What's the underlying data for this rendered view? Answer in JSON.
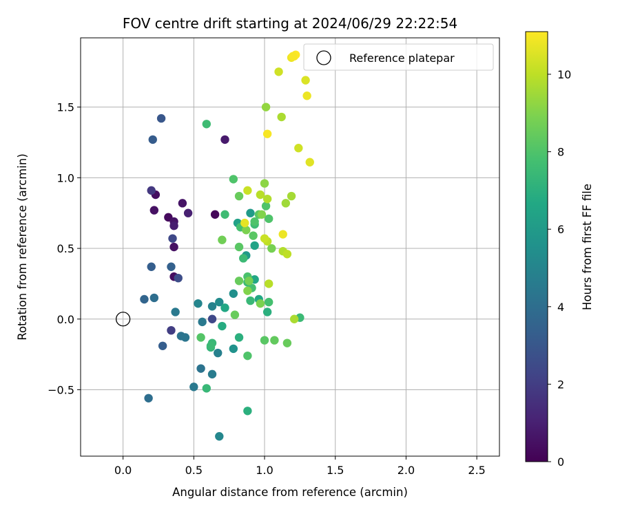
{
  "chart_data": {
    "type": "scatter",
    "title": "FOV centre drift starting at 2024/06/29 22:22:54",
    "xlabel": "Angular distance from reference (arcmin)",
    "ylabel": "Rotation from reference (arcmin)",
    "xlim": [
      -0.3,
      2.66
    ],
    "ylim": [
      -0.97,
      1.99
    ],
    "xticks": [
      0.0,
      0.5,
      1.0,
      1.5,
      2.0,
      2.5
    ],
    "xtick_labels": [
      "0.0",
      "0.5",
      "1.0",
      "1.5",
      "2.0",
      "2.5"
    ],
    "yticks": [
      -0.5,
      0.0,
      0.5,
      1.0,
      1.5
    ],
    "ytick_labels": [
      "−0.5",
      "0.0",
      "0.5",
      "1.0",
      "1.5"
    ],
    "grid": true,
    "legend": {
      "placement": "top-right",
      "entries": [
        "Reference platepar"
      ]
    },
    "reference_point": {
      "x": 0.0,
      "y": 0.0,
      "marker": "open-circle",
      "color": "#000000"
    },
    "colorbar": {
      "label": "Hours from first FF file",
      "colormap": "viridis",
      "range": [
        0,
        11.1
      ],
      "ticks": [
        0,
        2,
        4,
        6,
        8,
        10
      ],
      "tick_labels": [
        "0",
        "2",
        "4",
        "6",
        "8",
        "10"
      ]
    },
    "series": [
      {
        "points": [
          [
            0.23,
            0.88,
            0.4
          ],
          [
            0.22,
            0.77,
            0.5
          ],
          [
            0.32,
            0.72,
            0.3
          ],
          [
            0.36,
            0.69,
            0.6
          ],
          [
            0.36,
            0.66,
            0.9
          ],
          [
            0.36,
            0.51,
            0.5
          ],
          [
            0.36,
            0.3,
            0.4
          ],
          [
            0.42,
            0.82,
            0.6
          ],
          [
            0.46,
            0.75,
            1.0
          ],
          [
            0.65,
            0.74,
            0.2
          ],
          [
            0.72,
            1.27,
            0.8
          ],
          [
            0.2,
            0.91,
            1.8
          ],
          [
            0.35,
            0.57,
            2.4
          ],
          [
            0.34,
            -0.08,
            2.0
          ],
          [
            0.39,
            0.29,
            2.6
          ],
          [
            0.63,
            0.0,
            2.4
          ],
          [
            0.27,
            1.42,
            3.0
          ],
          [
            0.21,
            1.27,
            3.2
          ],
          [
            0.2,
            0.37,
            3.3
          ],
          [
            0.34,
            0.37,
            3.4
          ],
          [
            0.15,
            0.14,
            3.6
          ],
          [
            0.28,
            -0.19,
            3.3
          ],
          [
            0.22,
            0.15,
            4.0
          ],
          [
            0.18,
            -0.56,
            4.0
          ],
          [
            0.55,
            -0.35,
            4.2
          ],
          [
            0.41,
            -0.12,
            4.2
          ],
          [
            0.44,
            -0.13,
            4.3
          ],
          [
            0.37,
            0.05,
            4.5
          ],
          [
            0.56,
            -0.02,
            4.5
          ],
          [
            0.5,
            -0.48,
            4.5
          ],
          [
            0.63,
            -0.39,
            4.6
          ],
          [
            0.67,
            -0.24,
            4.8
          ],
          [
            0.63,
            0.09,
            4.9
          ],
          [
            0.53,
            0.11,
            5.0
          ],
          [
            0.68,
            -0.83,
            5.1
          ],
          [
            0.68,
            0.12,
            5.3
          ],
          [
            0.78,
            0.18,
            5.5
          ],
          [
            0.78,
            -0.21,
            5.6
          ],
          [
            0.87,
            0.45,
            6.0
          ],
          [
            0.9,
            0.75,
            6.0
          ],
          [
            0.81,
            0.68,
            6.3
          ],
          [
            0.93,
            0.52,
            6.4
          ],
          [
            0.93,
            0.28,
            6.6
          ],
          [
            0.96,
            0.14,
            6.6
          ],
          [
            0.72,
            0.08,
            6.6
          ],
          [
            0.7,
            -0.05,
            6.8
          ],
          [
            0.82,
            -0.13,
            7.0
          ],
          [
            0.88,
            -0.65,
            7.0
          ],
          [
            0.59,
            -0.49,
            7.4
          ],
          [
            0.62,
            -0.2,
            7.2
          ],
          [
            0.63,
            -0.17,
            7.4
          ],
          [
            0.62,
            -0.19,
            7.5
          ],
          [
            0.88,
            0.26,
            7.5
          ],
          [
            0.85,
            0.43,
            7.5
          ],
          [
            0.9,
            0.13,
            7.4
          ],
          [
            0.93,
            0.67,
            7.6
          ],
          [
            0.83,
            0.65,
            7.8
          ],
          [
            0.91,
            0.22,
            7.8
          ],
          [
            1.01,
            0.8,
            8.0
          ],
          [
            1.03,
            0.71,
            8.0
          ],
          [
            1.02,
            0.05,
            7.0
          ],
          [
            1.03,
            0.12,
            7.8
          ],
          [
            1.25,
            0.01,
            7.5
          ],
          [
            0.59,
            1.38,
            7.6
          ],
          [
            0.72,
            0.74,
            7.6
          ],
          [
            0.78,
            0.99,
            8.0
          ],
          [
            0.93,
            0.69,
            8.0
          ],
          [
            0.92,
            0.59,
            8.2
          ],
          [
            0.96,
            0.74,
            8.2
          ],
          [
            0.88,
            0.3,
            7.9
          ],
          [
            0.82,
            0.51,
            8.2
          ],
          [
            0.82,
            0.87,
            8.5
          ],
          [
            0.82,
            0.27,
            8.5
          ],
          [
            0.79,
            0.03,
            8.5
          ],
          [
            0.88,
            -0.26,
            8.0
          ],
          [
            0.55,
            -0.13,
            8.1
          ],
          [
            1.0,
            -0.15,
            8.2
          ],
          [
            1.07,
            -0.15,
            8.4
          ],
          [
            1.16,
            -0.17,
            8.5
          ],
          [
            0.7,
            0.56,
            8.7
          ],
          [
            0.87,
            0.63,
            8.9
          ],
          [
            0.89,
            0.27,
            8.8
          ],
          [
            0.88,
            0.2,
            9.0
          ],
          [
            0.97,
            0.11,
            8.9
          ],
          [
            1.05,
            0.5,
            8.8
          ],
          [
            0.98,
            0.74,
            9.0
          ],
          [
            1.0,
            0.96,
            9.2
          ],
          [
            1.01,
            1.5,
            9.3
          ],
          [
            1.15,
            0.82,
            9.5
          ],
          [
            1.19,
            0.87,
            9.6
          ],
          [
            1.02,
            0.85,
            9.8
          ],
          [
            0.97,
            0.88,
            9.9
          ],
          [
            0.88,
            0.91,
            10.2
          ],
          [
            1.02,
            0.55,
            10.0
          ],
          [
            1.0,
            0.57,
            10.2
          ],
          [
            1.03,
            0.25,
            9.9
          ],
          [
            1.13,
            0.48,
            9.8
          ],
          [
            1.16,
            0.46,
            10.0
          ],
          [
            1.21,
            0.0,
            9.7
          ],
          [
            1.12,
            1.43,
            9.7
          ],
          [
            1.24,
            1.21,
            10.3
          ],
          [
            1.1,
            1.75,
            10.3
          ],
          [
            1.29,
            1.69,
            10.5
          ],
          [
            1.13,
            0.6,
            10.8
          ],
          [
            0.86,
            0.68,
            10.7
          ],
          [
            1.02,
            1.31,
            11.0
          ],
          [
            1.3,
            1.58,
            10.8
          ],
          [
            1.32,
            1.11,
            10.6
          ],
          [
            1.19,
            1.85,
            10.8
          ],
          [
            1.21,
            1.86,
            11.0
          ],
          [
            1.22,
            1.87,
            11.1
          ],
          [
            1.2,
            1.86,
            11.0
          ]
        ]
      }
    ]
  }
}
